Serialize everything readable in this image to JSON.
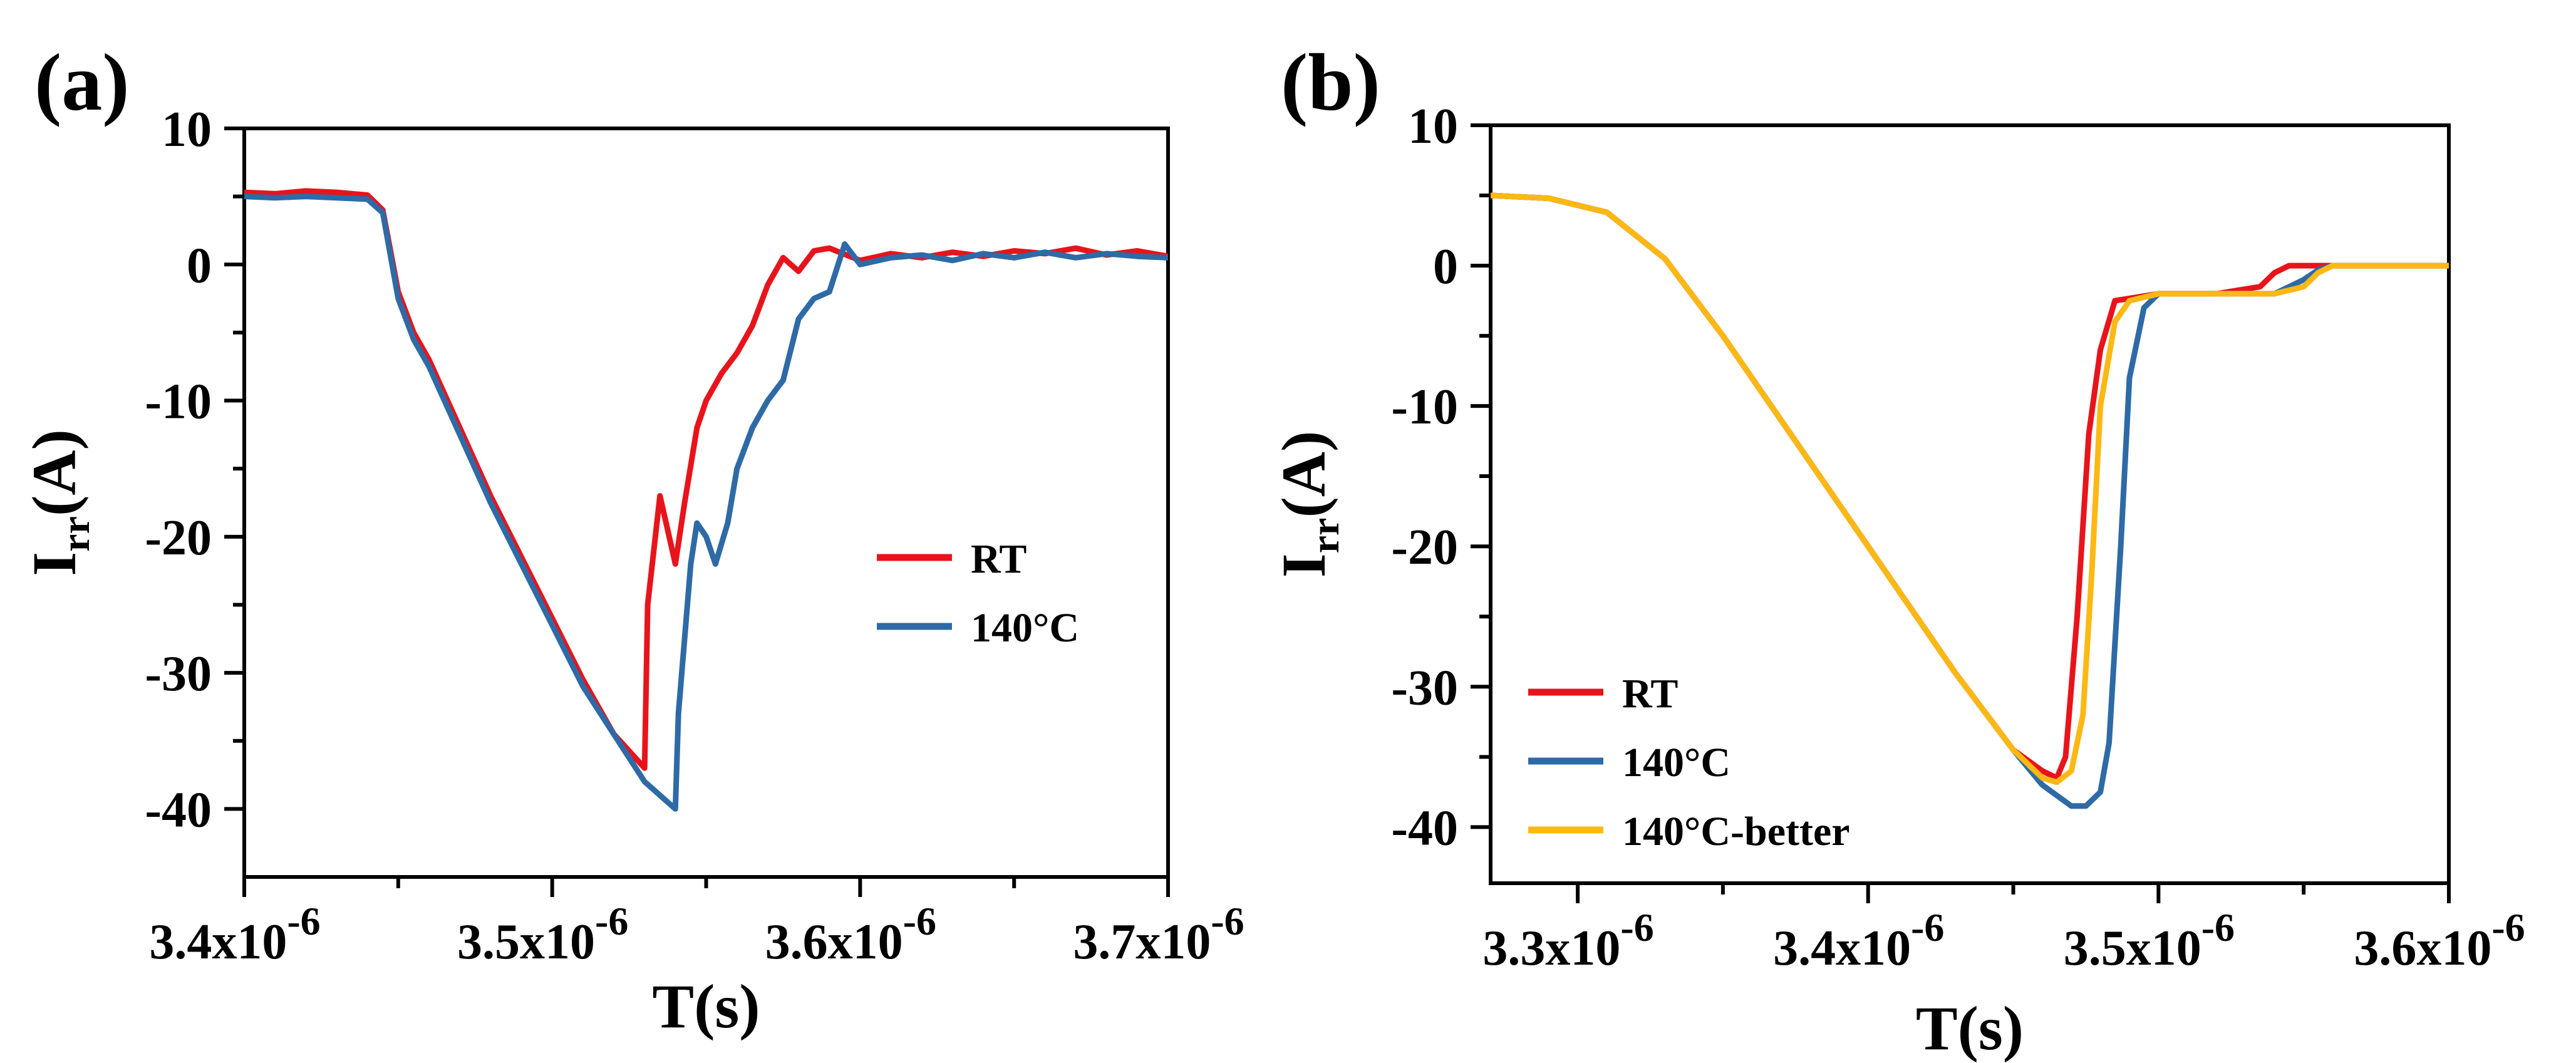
{
  "chart_data": [
    {
      "type": "line",
      "panel_label": "(a)",
      "title": "",
      "xlabel": "T(s)",
      "ylabel_main": "I",
      "ylabel_sub": "rr",
      "ylabel_unit": "(A)",
      "xlim": [
        3.4e-06,
        3.7e-06
      ],
      "ylim": [
        -45,
        10
      ],
      "xticks": [
        3.4e-06,
        3.5e-06,
        3.6e-06,
        3.7e-06
      ],
      "xtick_mantissa": [
        "3.4x10",
        "3.5x10",
        "3.6x10",
        "3.7x10"
      ],
      "xtick_exponent": "-6",
      "yticks": [
        -40,
        -30,
        -20,
        -10,
        0,
        10
      ],
      "ytick_labels": [
        "-40",
        "-30",
        "-20",
        "-10",
        "0",
        "10"
      ],
      "legend_position": "center-right",
      "series": [
        {
          "name": "RT",
          "color": "#e8141b",
          "x": [
            3.4e-06,
            3.41e-06,
            3.42e-06,
            3.43e-06,
            3.44e-06,
            3.445e-06,
            3.45e-06,
            3.455e-06,
            3.46e-06,
            3.47e-06,
            3.48e-06,
            3.49e-06,
            3.5e-06,
            3.51e-06,
            3.52e-06,
            3.53e-06,
            3.531e-06,
            3.535e-06,
            3.537e-06,
            3.54e-06,
            3.543e-06,
            3.547e-06,
            3.55e-06,
            3.555e-06,
            3.56e-06,
            3.565e-06,
            3.57e-06,
            3.575e-06,
            3.58e-06,
            3.585e-06,
            3.59e-06,
            3.6e-06,
            3.61e-06,
            3.62e-06,
            3.63e-06,
            3.64e-06,
            3.65e-06,
            3.66e-06,
            3.67e-06,
            3.68e-06,
            3.69e-06,
            3.7e-06
          ],
          "y": [
            5.3,
            5.2,
            5.4,
            5.3,
            5.1,
            4.0,
            -2.0,
            -5.0,
            -7.0,
            -12.0,
            -17.0,
            -21.5,
            -26.0,
            -30.5,
            -34.5,
            -37.0,
            -25.0,
            -17.0,
            -19.0,
            -22.0,
            -17.5,
            -12.0,
            -10.0,
            -8.0,
            -6.5,
            -4.5,
            -1.5,
            0.5,
            -0.5,
            1.0,
            1.2,
            0.3,
            0.8,
            0.5,
            0.9,
            0.6,
            1.0,
            0.8,
            1.2,
            0.7,
            1.0,
            0.6
          ]
        },
        {
          "name": "140°C",
          "color": "#2e6aa6",
          "x": [
            3.4e-06,
            3.41e-06,
            3.42e-06,
            3.43e-06,
            3.44e-06,
            3.445e-06,
            3.45e-06,
            3.455e-06,
            3.46e-06,
            3.47e-06,
            3.48e-06,
            3.49e-06,
            3.5e-06,
            3.51e-06,
            3.52e-06,
            3.53e-06,
            3.535e-06,
            3.54e-06,
            3.541e-06,
            3.545e-06,
            3.547e-06,
            3.55e-06,
            3.553e-06,
            3.557e-06,
            3.56e-06,
            3.565e-06,
            3.57e-06,
            3.575e-06,
            3.58e-06,
            3.585e-06,
            3.59e-06,
            3.595e-06,
            3.6e-06,
            3.61e-06,
            3.62e-06,
            3.63e-06,
            3.64e-06,
            3.65e-06,
            3.66e-06,
            3.67e-06,
            3.68e-06,
            3.69e-06,
            3.7e-06
          ],
          "y": [
            5.0,
            4.9,
            5.0,
            4.9,
            4.8,
            3.8,
            -2.5,
            -5.5,
            -7.5,
            -12.5,
            -17.5,
            -22.0,
            -26.5,
            -31.0,
            -34.5,
            -38.0,
            -39.0,
            -40.0,
            -33.0,
            -22.0,
            -19.0,
            -20.0,
            -22.0,
            -19.0,
            -15.0,
            -12.0,
            -10.0,
            -8.5,
            -4.0,
            -2.5,
            -2.0,
            1.5,
            0.0,
            0.5,
            0.7,
            0.3,
            0.8,
            0.5,
            0.9,
            0.5,
            0.8,
            0.6,
            0.5
          ]
        }
      ]
    },
    {
      "type": "line",
      "panel_label": "(b)",
      "title": "",
      "xlabel": "T(s)",
      "ylabel_main": "I",
      "ylabel_sub": "rr",
      "ylabel_unit": "(A)",
      "xlim": [
        3.27e-06,
        3.6e-06
      ],
      "ylim": [
        -44,
        10
      ],
      "xticks": [
        3.3e-06,
        3.4e-06,
        3.5e-06,
        3.6e-06
      ],
      "xtick_mantissa": [
        "3.3x10",
        "3.4x10",
        "3.5x10",
        "3.6x10"
      ],
      "xtick_exponent": "-6",
      "yticks": [
        -40,
        -30,
        -20,
        -10,
        0,
        10
      ],
      "ytick_labels": [
        "-40",
        "-30",
        "-20",
        "-10",
        "0",
        "10"
      ],
      "legend_position": "bottom-left",
      "series": [
        {
          "name": "RT",
          "color": "#e8141b",
          "x": [
            3.27e-06,
            3.29e-06,
            3.31e-06,
            3.33e-06,
            3.35e-06,
            3.37e-06,
            3.39e-06,
            3.41e-06,
            3.43e-06,
            3.45e-06,
            3.46e-06,
            3.465e-06,
            3.468e-06,
            3.472e-06,
            3.476e-06,
            3.48e-06,
            3.485e-06,
            3.5e-06,
            3.52e-06,
            3.535e-06,
            3.54e-06,
            3.545e-06,
            3.55e-06,
            3.56e-06,
            3.58e-06,
            3.6e-06
          ],
          "y": [
            5.0,
            4.8,
            3.8,
            0.5,
            -5.0,
            -11.0,
            -17.0,
            -23.0,
            -29.0,
            -34.5,
            -36.0,
            -36.5,
            -35.0,
            -25.0,
            -12.0,
            -6.0,
            -2.5,
            -2.0,
            -2.0,
            -1.5,
            -0.5,
            0.0,
            0.0,
            0.0,
            0.0,
            0.0
          ]
        },
        {
          "name": "140°C",
          "color": "#2e6aa6",
          "x": [
            3.27e-06,
            3.29e-06,
            3.31e-06,
            3.33e-06,
            3.35e-06,
            3.37e-06,
            3.39e-06,
            3.41e-06,
            3.43e-06,
            3.45e-06,
            3.46e-06,
            3.47e-06,
            3.475e-06,
            3.48e-06,
            3.483e-06,
            3.487e-06,
            3.49e-06,
            3.495e-06,
            3.5e-06,
            3.52e-06,
            3.54e-06,
            3.55e-06,
            3.555e-06,
            3.56e-06,
            3.58e-06,
            3.6e-06
          ],
          "y": [
            5.0,
            4.8,
            3.8,
            0.5,
            -5.0,
            -11.0,
            -17.0,
            -23.0,
            -29.0,
            -34.5,
            -37.0,
            -38.5,
            -38.5,
            -37.5,
            -34.0,
            -20.0,
            -8.0,
            -3.0,
            -2.0,
            -2.0,
            -2.0,
            -1.0,
            -0.3,
            0.0,
            0.0,
            0.0
          ]
        },
        {
          "name": "140°C-better",
          "color": "#fdb813",
          "x": [
            3.27e-06,
            3.29e-06,
            3.31e-06,
            3.33e-06,
            3.35e-06,
            3.37e-06,
            3.39e-06,
            3.41e-06,
            3.43e-06,
            3.45e-06,
            3.46e-06,
            3.465e-06,
            3.47e-06,
            3.474e-06,
            3.477e-06,
            3.48e-06,
            3.485e-06,
            3.49e-06,
            3.5e-06,
            3.52e-06,
            3.54e-06,
            3.55e-06,
            3.555e-06,
            3.56e-06,
            3.58e-06,
            3.6e-06
          ],
          "y": [
            5.0,
            4.8,
            3.8,
            0.5,
            -5.0,
            -11.0,
            -17.0,
            -23.0,
            -29.0,
            -34.5,
            -36.5,
            -36.8,
            -36.0,
            -32.0,
            -22.0,
            -10.0,
            -4.0,
            -2.5,
            -2.0,
            -2.0,
            -2.0,
            -1.5,
            -0.5,
            0.0,
            0.0,
            0.0
          ]
        }
      ]
    }
  ]
}
